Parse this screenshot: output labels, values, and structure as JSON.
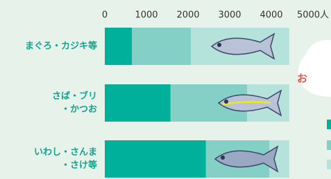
{
  "chart_data": {
    "type": "stacked-barh",
    "categories": [
      [
        "まぐろ・カジキ等"
      ],
      [
        "さば・ブリ",
        "・かつお"
      ],
      [
        "いわし・さんま",
        "・さけ等"
      ]
    ],
    "series": [
      {
        "color": "#00b09b",
        "values": [
          650,
          1580,
          2430
        ]
      },
      {
        "color": "#85d0c6",
        "values": [
          1420,
          1840,
          1520
        ]
      },
      {
        "color": "#b5e2da",
        "values": [
          2360,
          1010,
          480
        ]
      }
    ],
    "xlim": [
      0,
      5000
    ],
    "xticks": [
      0,
      1000,
      2000,
      3000,
      4000,
      {
        "value": 5000,
        "label": "5000人"
      }
    ],
    "annotation": "お"
  }
}
